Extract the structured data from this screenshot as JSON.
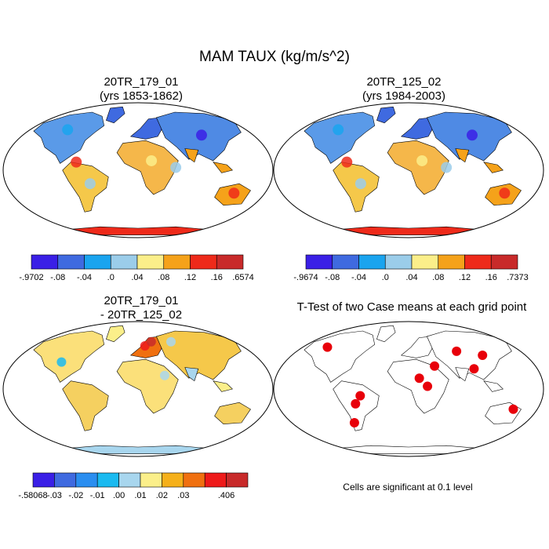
{
  "title": "MAM TAUX (kg/m/s^2)",
  "panels": [
    {
      "id": "p1",
      "title_line1": "20TR_179_01",
      "title_line2": "(yrs 1853-1862)",
      "kind": "field"
    },
    {
      "id": "p2",
      "title_line1": "20TR_125_02",
      "title_line2": "(yrs 1984-2003)",
      "kind": "field"
    },
    {
      "id": "p3",
      "title_line1": "20TR_179_01",
      "title_line2": "- 20TR_125_02",
      "kind": "diff"
    },
    {
      "id": "p4",
      "title_line1": "T-Test of two Case means at each grid point",
      "title_line2": "",
      "kind": "ttest"
    }
  ],
  "colorbars": [
    {
      "id": "cb1",
      "colors": [
        "#3a1fe6",
        "#3f6ae0",
        "#1aa4ef",
        "#9bcdea",
        "#fbef8a",
        "#f5a21a",
        "#ee2a1a",
        "#c82a2a"
      ],
      "labels": [
        "-.9702",
        "-.08",
        "-.04",
        ".0",
        ".04",
        ".08",
        ".12",
        ".16",
        ".6574"
      ]
    },
    {
      "id": "cb2",
      "colors": [
        "#3a1fe6",
        "#3f6ae0",
        "#1aa4ef",
        "#9bcdea",
        "#fbef8a",
        "#f5a21a",
        "#ee2a1a",
        "#c82a2a"
      ],
      "labels": [
        "-.9674",
        "-.08",
        "-.04",
        ".0",
        ".04",
        ".08",
        ".12",
        ".16",
        ".7373"
      ]
    },
    {
      "id": "cb3",
      "colors": [
        "#3a1fe6",
        "#3f6ae0",
        "#2a8ef0",
        "#1abaf0",
        "#a8d6ee",
        "#fbef8a",
        "#f5b01a",
        "#f07010",
        "#ee1a1a",
        "#c82a2a"
      ],
      "labels": [
        "-.58068",
        "-.03",
        "-.02",
        "-.01",
        ".00",
        ".01",
        ".02",
        ".03",
        "",
        ".406"
      ]
    }
  ],
  "ttest_note": "Cells are significant at 0.1 level"
}
